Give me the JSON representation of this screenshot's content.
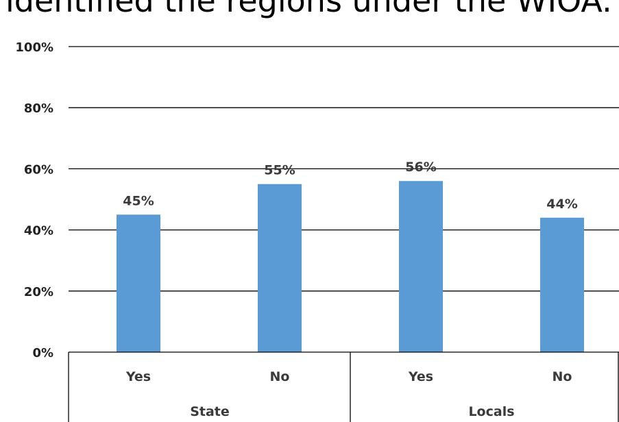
{
  "page": {
    "top_text": "identified the regions under the WIOA."
  },
  "colors": {
    "bar": "#5b9bd5",
    "grid": "#000000",
    "text": "#3a3a3a"
  },
  "chart_data": {
    "type": "bar",
    "title": "",
    "xlabel": "",
    "ylabel": "",
    "ylim": [
      0,
      100
    ],
    "yticks": [
      "0%",
      "20%",
      "40%",
      "60%",
      "80%",
      "100%"
    ],
    "categories": [
      "Yes",
      "No",
      "Yes",
      "No"
    ],
    "groups": [
      {
        "label": "State",
        "categories": [
          "Yes",
          "No"
        ]
      },
      {
        "label": "Locals",
        "categories": [
          "Yes",
          "No"
        ]
      }
    ],
    "series": [
      {
        "values": [
          45,
          55,
          56,
          44
        ]
      }
    ],
    "data_labels": [
      "45%",
      "55%",
      "56%",
      "44%"
    ],
    "grid": true,
    "legend": "none"
  }
}
